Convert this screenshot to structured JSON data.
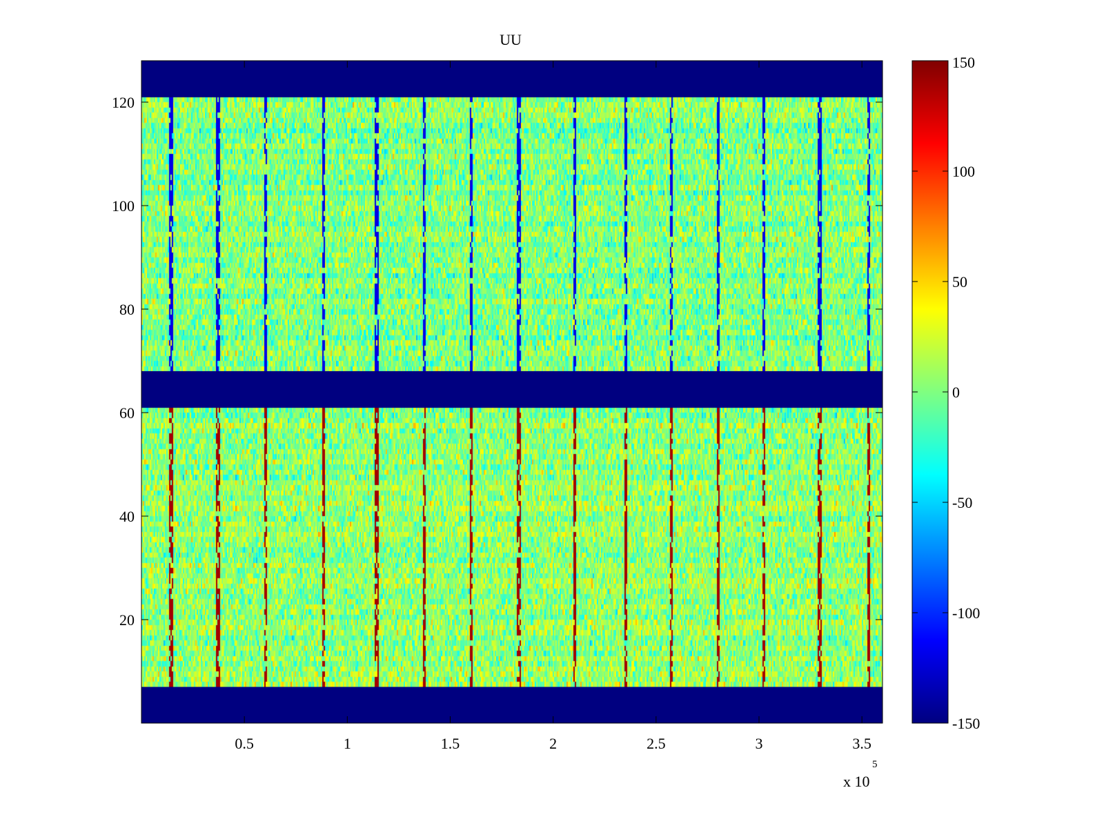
{
  "chart_data": {
    "type": "heatmap",
    "title": "UU",
    "xlabel": "",
    "ylabel": "",
    "x_exponent_label": "x 10",
    "x_exponent": "5",
    "xlim": [
      0,
      3.6
    ],
    "ylim": [
      0,
      128
    ],
    "x_ticks": [
      {
        "value": 0.5,
        "label": "0.5"
      },
      {
        "value": 1,
        "label": "1"
      },
      {
        "value": 1.5,
        "label": "1.5"
      },
      {
        "value": 2,
        "label": "2"
      },
      {
        "value": 2.5,
        "label": "2.5"
      },
      {
        "value": 3,
        "label": "3"
      },
      {
        "value": 3.5,
        "label": "3.5"
      }
    ],
    "y_ticks": [
      {
        "value": 20,
        "label": "20"
      },
      {
        "value": 40,
        "label": "40"
      },
      {
        "value": 60,
        "label": "60"
      },
      {
        "value": 80,
        "label": "80"
      },
      {
        "value": 100,
        "label": "100"
      },
      {
        "value": 120,
        "label": "120"
      }
    ],
    "colorbar": {
      "colormap": "jet",
      "clim": [
        -150,
        150
      ],
      "ticks": [
        {
          "value": 150,
          "label": "150"
        },
        {
          "value": 100,
          "label": "100"
        },
        {
          "value": 50,
          "label": "50"
        },
        {
          "value": 0,
          "label": "0"
        },
        {
          "value": -50,
          "label": "-50"
        },
        {
          "value": -100,
          "label": "-100"
        },
        {
          "value": -150,
          "label": "-150"
        }
      ]
    },
    "grid": false,
    "bands": [
      {
        "y_range": [
          0,
          7
        ],
        "value": -150,
        "description": "masked"
      },
      {
        "y_range": [
          7,
          61
        ],
        "value_range": [
          -60,
          60
        ],
        "mean": 5
      },
      {
        "y_range": [
          61,
          68
        ],
        "value": -150,
        "description": "masked"
      },
      {
        "y_range": [
          68,
          121
        ],
        "value_range": [
          -60,
          60
        ],
        "mean": 0
      },
      {
        "y_range": [
          121,
          128
        ],
        "value": -150,
        "description": "masked"
      }
    ],
    "stripe_positions_x": [
      0.14,
      0.37,
      0.6,
      0.88,
      1.14,
      1.37,
      1.6,
      1.83,
      2.1,
      2.35,
      2.57,
      2.8,
      3.02,
      3.29,
      3.53
    ],
    "lower_band_stripe_value": 140,
    "upper_band_stripe_value": -120
  }
}
